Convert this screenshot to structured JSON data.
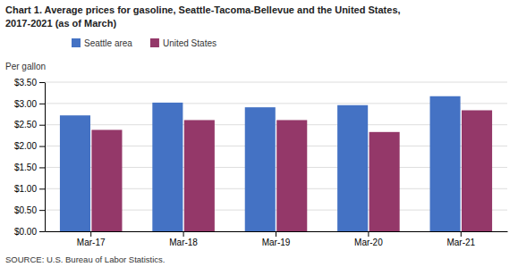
{
  "chart_data": {
    "type": "bar",
    "title": "Chart 1. Average prices for gasoline, Seattle-Tacoma-Bellevue and the United States,",
    "subtitle": "2017-2021  (as of March)",
    "ylabel": "Per gallon",
    "annotations": [
      "SOURCE: U.S. Bureau of Labor Statistics."
    ],
    "categories": [
      "Mar-17",
      "Mar-18",
      "Mar-19",
      "Mar-20",
      "Mar-21"
    ],
    "series": [
      {
        "name": "Seattle area",
        "color": "#4472C4",
        "values": [
          2.72,
          3.02,
          2.91,
          2.96,
          3.17
        ]
      },
      {
        "name": "United States",
        "color": "#943869",
        "values": [
          2.38,
          2.61,
          2.61,
          2.33,
          2.84
        ]
      }
    ],
    "ylim": [
      0.0,
      3.5
    ],
    "yticks": [
      {
        "value": 0.0,
        "label": "$0.00"
      },
      {
        "value": 0.5,
        "label": "$0.50"
      },
      {
        "value": 1.0,
        "label": "$1.00"
      },
      {
        "value": 1.5,
        "label": "$1.50"
      },
      {
        "value": 2.0,
        "label": "$2.00"
      },
      {
        "value": 2.5,
        "label": "$2.50"
      },
      {
        "value": 3.0,
        "label": "$3.00"
      },
      {
        "value": 3.5,
        "label": "$3.50"
      }
    ],
    "grid": true,
    "legend": "top"
  }
}
